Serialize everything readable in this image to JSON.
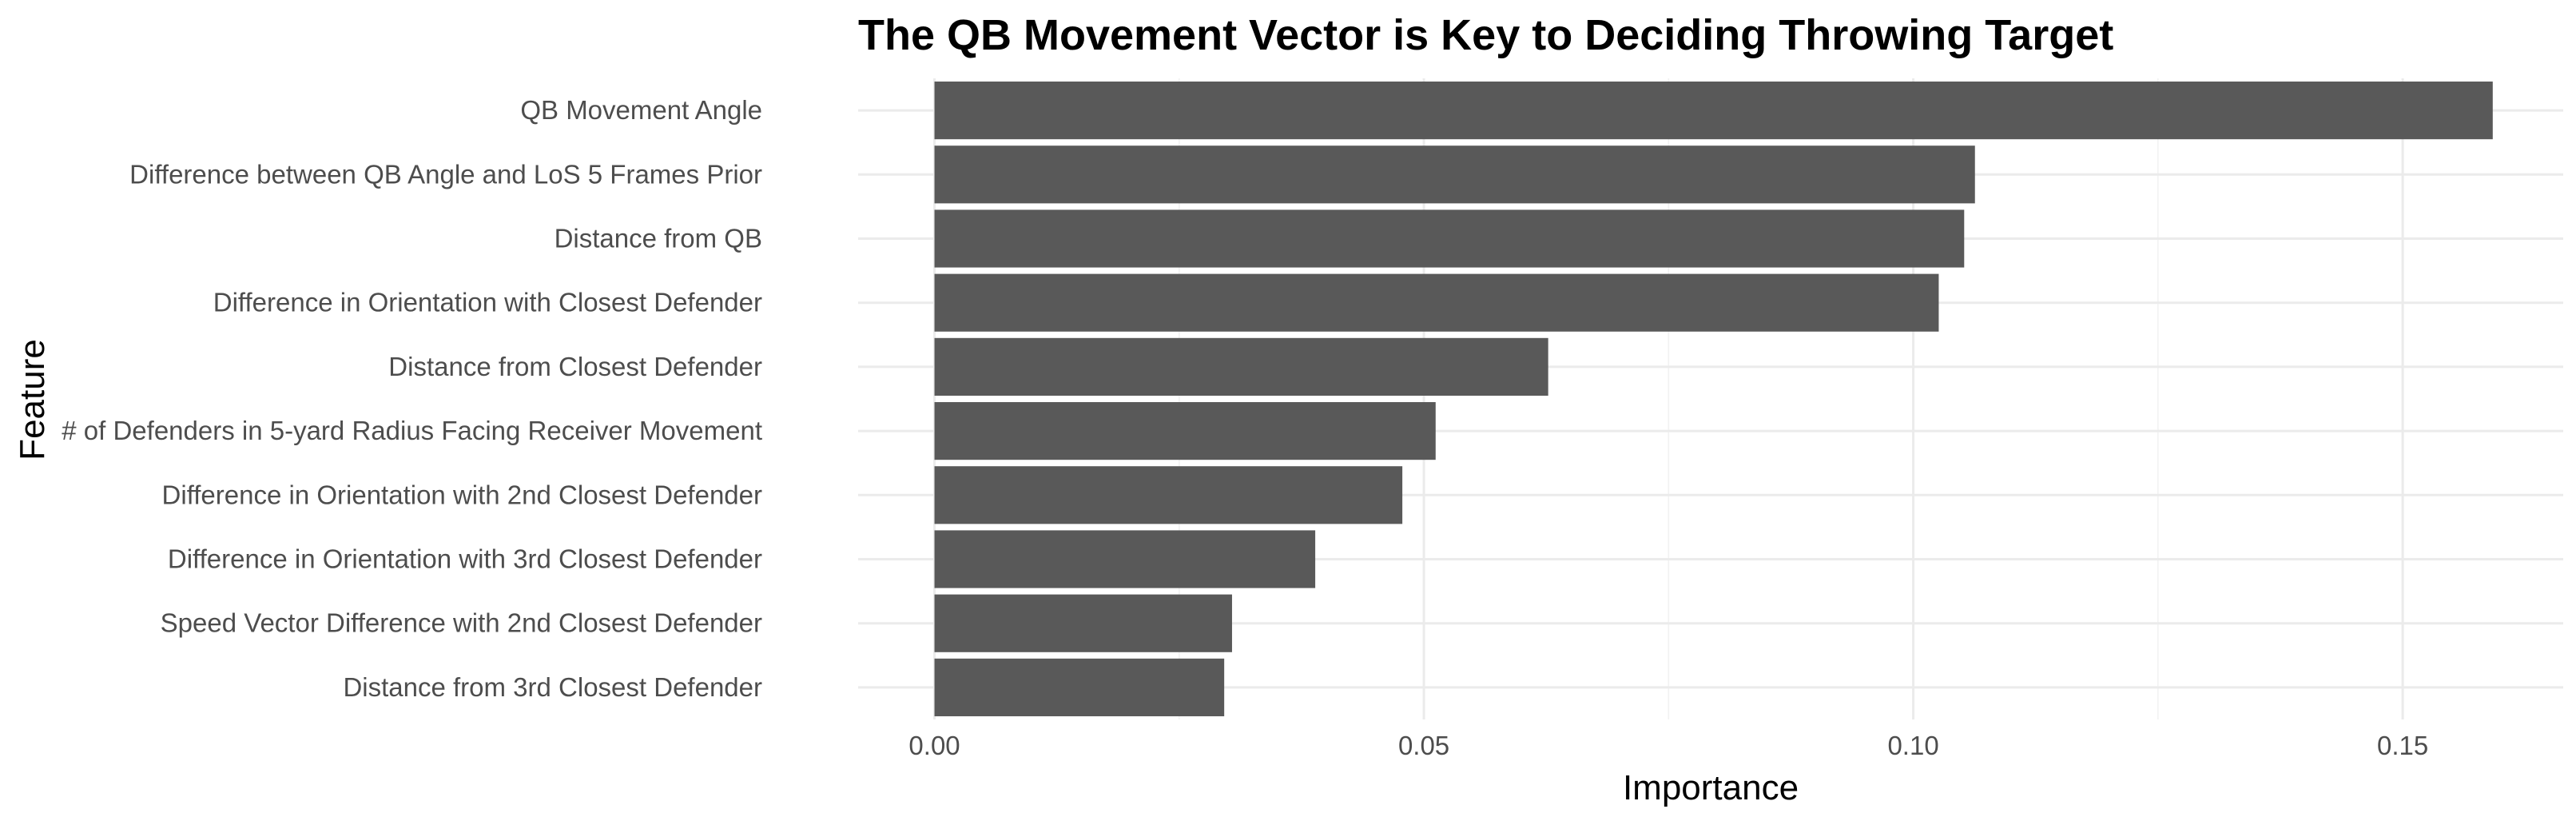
{
  "chart_data": {
    "type": "bar",
    "orientation": "horizontal",
    "title": "The QB Movement Vector is Key to Deciding Throwing Target",
    "xlabel": "Importance",
    "ylabel": "Feature",
    "categories": [
      "QB Movement Angle",
      "Difference between QB Angle and LoS 5 Frames Prior",
      "Distance from QB",
      "Difference in Orientation with Closest Defender",
      "Distance from Closest Defender",
      "# of Defenders in 5-yard Radius Facing Receiver Movement",
      "Difference in Orientation with 2nd Closest Defender",
      "Difference in Orientation with 3rd Closest Defender",
      "Speed Vector Difference with 2nd Closest Defender",
      "Distance from 3rd Closest Defender"
    ],
    "values": [
      0.1592,
      0.1063,
      0.1052,
      0.1026,
      0.0627,
      0.0512,
      0.0478,
      0.0389,
      0.0304,
      0.0296
    ],
    "xlim": [
      -0.0078,
      0.1664
    ],
    "xticks": [
      0.0,
      0.05,
      0.1,
      0.15
    ],
    "xtick_labels": [
      "0.00",
      "0.05",
      "0.10",
      "0.15"
    ],
    "grid": true,
    "bar_color": "#595959",
    "legend": "none"
  }
}
